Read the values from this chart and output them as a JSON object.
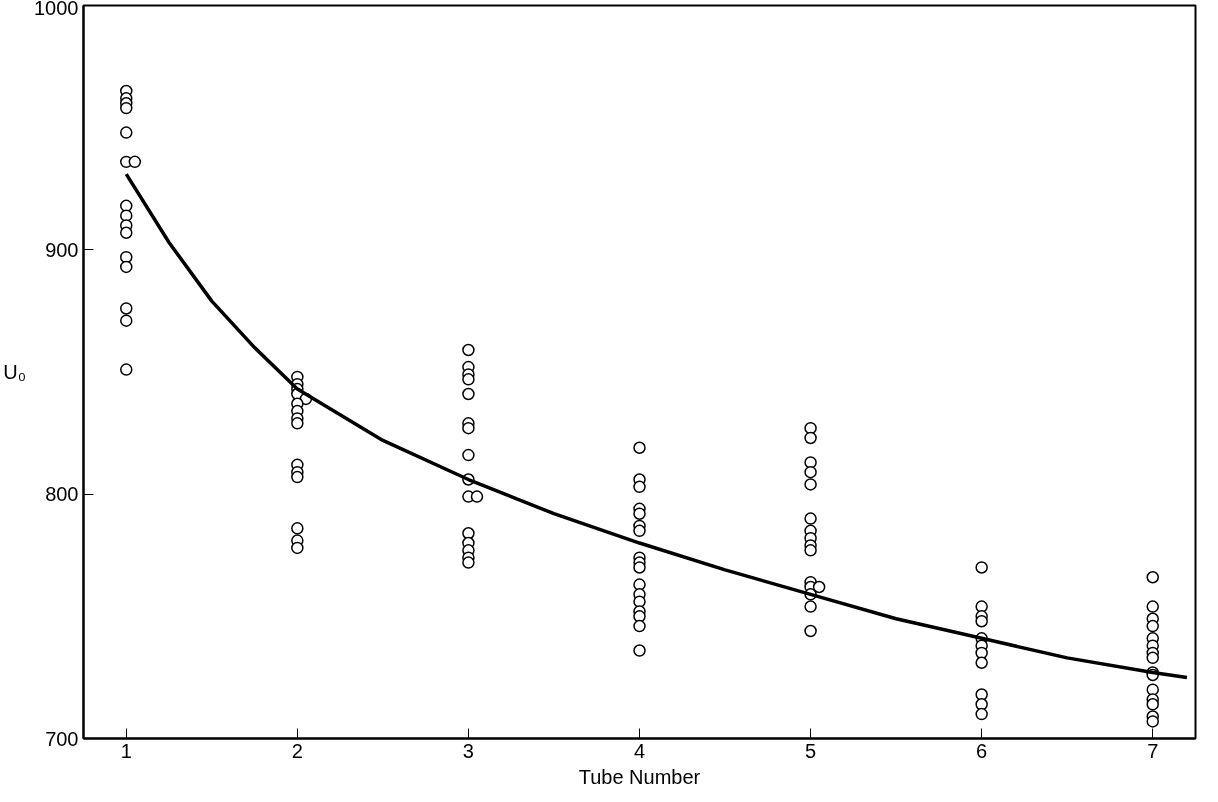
{
  "chart_data": {
    "type": "scatter",
    "xlabel": "Tube Number",
    "ylabel": "U₀",
    "xlim": [
      0.75,
      7.25
    ],
    "ylim": [
      700,
      1000
    ],
    "xticks": [
      1,
      2,
      3,
      4,
      5,
      6,
      7
    ],
    "yticks": [
      700,
      800,
      900,
      1000
    ],
    "grid": false,
    "marker": "circle",
    "series": [
      {
        "color": "#000000",
        "x": [
          1,
          1,
          1,
          1,
          1,
          1,
          1.05,
          1,
          1,
          1,
          1,
          1,
          1,
          1,
          1,
          1,
          2,
          2,
          2,
          2,
          2.05,
          2,
          2,
          2,
          2,
          2,
          2,
          2,
          2,
          2,
          2,
          3,
          3,
          3,
          3,
          3,
          3,
          3,
          3,
          3,
          3,
          3.05,
          3,
          3,
          3,
          3,
          3,
          4,
          4,
          4,
          4,
          4,
          4,
          4,
          4,
          4,
          4,
          4,
          4,
          4,
          4,
          4,
          4,
          4,
          5,
          5,
          5,
          5,
          5,
          5,
          5,
          5,
          5,
          5,
          5,
          5,
          5.05,
          5,
          5,
          5,
          6,
          6,
          6,
          6,
          6,
          6,
          6,
          6,
          6,
          6,
          6,
          7,
          7,
          7,
          7,
          7,
          7,
          7,
          7,
          7,
          7,
          7,
          7,
          7,
          7,
          7
        ],
        "values": [
          965,
          962,
          960,
          958,
          948,
          936,
          936,
          918,
          914,
          910,
          907,
          897,
          893,
          876,
          871,
          851,
          848,
          845,
          843,
          841,
          839,
          837,
          834,
          831,
          829,
          812,
          809,
          807,
          786,
          781,
          778,
          859,
          852,
          849,
          847,
          841,
          829,
          827,
          816,
          806,
          799,
          799,
          784,
          780,
          777,
          774,
          772,
          819,
          806,
          803,
          794,
          792,
          787,
          785,
          774,
          772,
          770,
          763,
          759,
          756,
          752,
          750,
          746,
          736,
          827,
          823,
          813,
          809,
          804,
          790,
          785,
          782,
          779,
          777,
          764,
          762,
          762,
          759,
          754,
          744,
          770,
          754,
          750,
          748,
          741,
          738,
          735,
          731,
          718,
          714,
          710,
          766,
          754,
          749,
          746,
          741,
          738,
          735,
          733,
          727,
          726,
          720,
          716,
          714,
          709,
          707
        ]
      },
      {
        "type": "line",
        "color": "#000000",
        "line_style": "solid",
        "marker": "none",
        "x": [
          1,
          1.25,
          1.5,
          1.75,
          2,
          2.5,
          3,
          3.5,
          4,
          4.5,
          5,
          5.5,
          6,
          6.5,
          7,
          7.2
        ],
        "values": [
          931,
          903,
          879,
          860,
          843,
          822,
          806,
          792,
          780,
          769,
          759,
          749,
          741,
          733,
          727,
          725
        ]
      }
    ]
  }
}
